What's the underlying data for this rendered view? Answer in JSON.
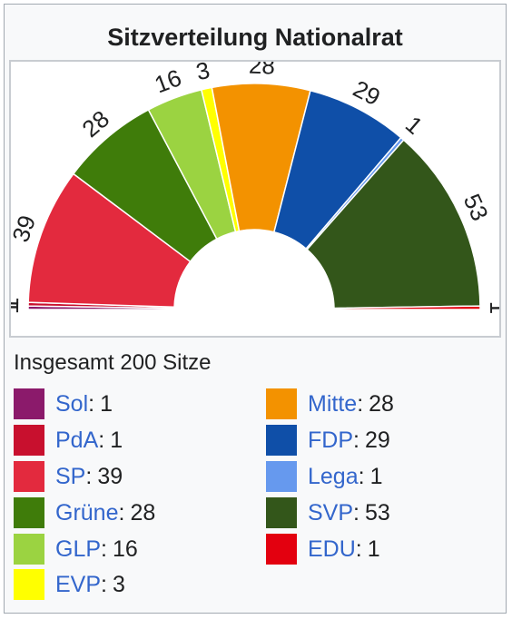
{
  "infobox": {
    "title": "Sitzverteilung Nationalrat",
    "total_text": "Insgesamt 200 Sitze"
  },
  "legend": [
    {
      "party": "Sol",
      "seats": "1",
      "color": "#8b1a6b",
      "column": 0,
      "row": 0
    },
    {
      "party": "PdA",
      "seats": "1",
      "color": "#c8102e",
      "column": 0,
      "row": 1
    },
    {
      "party": "SP",
      "seats": "39",
      "color": "#e32a3e",
      "column": 0,
      "row": 2
    },
    {
      "party": "Grüne",
      "seats": "28",
      "color": "#3f7c0a",
      "column": 0,
      "row": 3
    },
    {
      "party": "GLP",
      "seats": "16",
      "color": "#9bd341",
      "column": 0,
      "row": 4
    },
    {
      "party": "EVP",
      "seats": "3",
      "color": "#ffff00",
      "column": 0,
      "row": 5
    },
    {
      "party": "Mitte",
      "seats": "28",
      "color": "#f39200",
      "column": 1,
      "row": 0
    },
    {
      "party": "FDP",
      "seats": "29",
      "color": "#0f4fa8",
      "column": 1,
      "row": 1
    },
    {
      "party": "Lega",
      "seats": "1",
      "color": "#6699ee",
      "column": 1,
      "row": 2
    },
    {
      "party": "SVP",
      "seats": "53",
      "color": "#33561a",
      "column": 1,
      "row": 3
    },
    {
      "party": "EDU",
      "seats": "1",
      "color": "#e3000f",
      "column": 1,
      "row": 4
    }
  ],
  "chart_data": {
    "type": "pie",
    "subtype": "parliament-semicircle",
    "title": "Sitzverteilung Nationalrat",
    "total": 200,
    "categories": [
      "Sol",
      "PdA",
      "SP",
      "Grüne",
      "GLP",
      "EVP",
      "Mitte",
      "FDP",
      "Lega",
      "SVP",
      "EDU"
    ],
    "values": [
      1,
      1,
      39,
      28,
      16,
      3,
      28,
      29,
      1,
      53,
      1
    ],
    "colors": [
      "#8b1a6b",
      "#c8102e",
      "#e32a3e",
      "#3f7c0a",
      "#9bd341",
      "#ffff00",
      "#f39200",
      "#0f4fa8",
      "#6699ee",
      "#33561a",
      "#e3000f"
    ],
    "data_labels": [
      "1",
      "1",
      "39",
      "28",
      "16",
      "3",
      "28",
      "29",
      "1",
      "53",
      "1"
    ]
  }
}
